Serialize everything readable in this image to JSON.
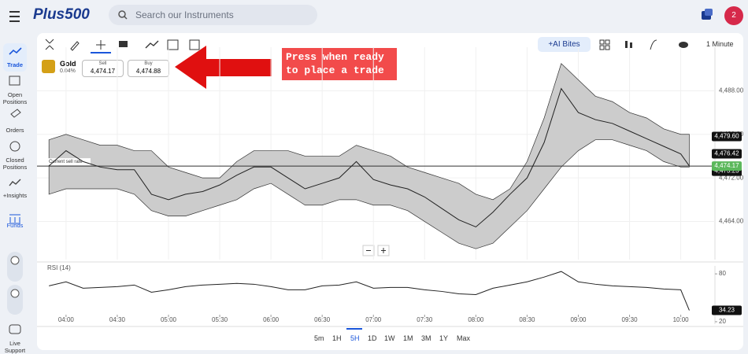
{
  "header": {
    "logo": "Plus500",
    "search_placeholder": "Search our Instruments",
    "avatar": "2"
  },
  "sidebar": [
    "Trade",
    "Open Positions",
    "Orders",
    "Closed Positions",
    "+Insights",
    "Funds",
    "Live Support"
  ],
  "toolbar": {
    "ai_bites": "+AI Bites",
    "interval": "1 Minute"
  },
  "instrument": {
    "name": "Gold",
    "change": "0.04%",
    "sell_label": "Sell",
    "sell_price": "4,474.17",
    "buy_label": "Buy",
    "buy_price": "4,474.88"
  },
  "annotation": [
    "Press when ready",
    "to place a trade"
  ],
  "time_ranges": [
    "5m",
    "1H",
    "5H",
    "1D",
    "1W",
    "1M",
    "3M",
    "1Y",
    "Max"
  ],
  "active_range": "5H",
  "chart_data": [
    {
      "type": "line",
      "x": [
        "03:50",
        "04:00",
        "04:10",
        "04:20",
        "04:30",
        "04:40",
        "04:50",
        "05:00",
        "05:10",
        "05:20",
        "05:30",
        "05:40",
        "05:50",
        "06:00",
        "06:10",
        "06:20",
        "06:30",
        "06:40",
        "06:50",
        "07:00",
        "07:10",
        "07:20",
        "07:30",
        "07:40",
        "07:50",
        "08:00",
        "08:10",
        "08:20",
        "08:30",
        "08:40",
        "08:50",
        "09:00",
        "09:10",
        "09:20",
        "09:30",
        "09:40",
        "09:50",
        "10:00",
        "10:05"
      ],
      "series": [
        {
          "color": "#222222",
          "values": [
            4474.2,
            4477.0,
            4475.0,
            4474.0,
            4473.5,
            4473.5,
            4469.0,
            4468.0,
            4469.0,
            4469.5,
            4470.7,
            4472.5,
            4474.0,
            4474.0,
            4472.0,
            4470.0,
            4471.0,
            4472.0,
            4475.0,
            4471.7,
            4470.7,
            4470.0,
            4468.5,
            4466.4,
            4464.3,
            4463.0,
            4465.7,
            4469.0,
            4472.0,
            4478.5,
            4488.4,
            4484.0,
            4482.7,
            4482.0,
            4480.6,
            4479.2,
            4477.8,
            4476.4,
            4474.2
          ]
        }
      ],
      "band": {
        "color": "#cccccc",
        "upper": [
          4479,
          4480,
          4479,
          4478,
          4478,
          4477,
          4477,
          4474,
          4473,
          4472,
          4472,
          4475,
          4477,
          4477,
          4477,
          4476,
          4476,
          4476,
          4478,
          4477,
          4476,
          4474,
          4473,
          4472,
          4471,
          4469,
          4468,
          4470,
          4475,
          4483,
          4493,
          4490,
          4487,
          4486,
          4484,
          4483,
          4481,
          4480,
          4480
        ],
        "lower": [
          4469,
          4470,
          4470,
          4470,
          4470,
          4469,
          4466,
          4465,
          4465,
          4466,
          4467,
          4468,
          4470,
          4471,
          4469,
          4467,
          4467,
          4468,
          4468,
          4467,
          4467,
          4466,
          4464,
          4462,
          4460,
          4459,
          4460,
          4463,
          4466,
          4470,
          4474,
          4477,
          4479,
          4479,
          4478,
          4477,
          4475,
          4474,
          4474
        ]
      },
      "xlim": [
        "03:43",
        "10:20"
      ],
      "xticks": [
        "04:00",
        "04:30",
        "05:00",
        "05:30",
        "06:00",
        "06:30",
        "07:00",
        "07:30",
        "08:00",
        "08:30",
        "09:00",
        "09:30",
        "10:00"
      ],
      "ylim": [
        4457,
        4496
      ],
      "yticks": [
        {
          "value": 4464,
          "label": "4,464.00"
        },
        {
          "value": 4472,
          "label": "4,472.00"
        },
        {
          "value": 4480,
          "label": "4,480.00"
        },
        {
          "value": 4488,
          "label": "4,488.00"
        }
      ],
      "grid": true,
      "current_rate": {
        "value": 4474.17,
        "label": "Current sell rate"
      },
      "price_tags": [
        {
          "value": 4479.6,
          "label": "4,479.60",
          "color": "#111111"
        },
        {
          "value": 4476.42,
          "label": "4,476.42",
          "color": "#111111"
        },
        {
          "value": 4473.23,
          "label": "4,473.23",
          "color": "#111111"
        },
        {
          "value": 4474.17,
          "label": "4,474.17",
          "color": "#5cb85c"
        }
      ]
    },
    {
      "type": "line",
      "title": "RSI (14)",
      "x": [
        "03:50",
        "04:00",
        "04:10",
        "04:20",
        "04:30",
        "04:40",
        "04:50",
        "05:00",
        "05:10",
        "05:20",
        "05:30",
        "05:40",
        "05:50",
        "06:00",
        "06:10",
        "06:20",
        "06:30",
        "06:40",
        "06:50",
        "07:00",
        "07:10",
        "07:20",
        "07:30",
        "07:40",
        "07:50",
        "08:00",
        "08:10",
        "08:20",
        "08:30",
        "08:40",
        "08:50",
        "09:00",
        "09:10",
        "09:20",
        "09:30",
        "09:40",
        "09:50",
        "10:00",
        "10:05"
      ],
      "series": [
        {
          "color": "#222222",
          "values": [
            65,
            70,
            62,
            63,
            64,
            66,
            57,
            60,
            64,
            66,
            67,
            68,
            67,
            64,
            60,
            60,
            65,
            66,
            70,
            62,
            63,
            63,
            60,
            58,
            55,
            54,
            62,
            66,
            70,
            76,
            83,
            70,
            67,
            65,
            64,
            63,
            61,
            60,
            34.23
          ]
        }
      ],
      "xlim": [
        "03:43",
        "10:20"
      ],
      "ylim": [
        17,
        90
      ],
      "yticks": [
        20,
        80
      ]
    }
  ]
}
